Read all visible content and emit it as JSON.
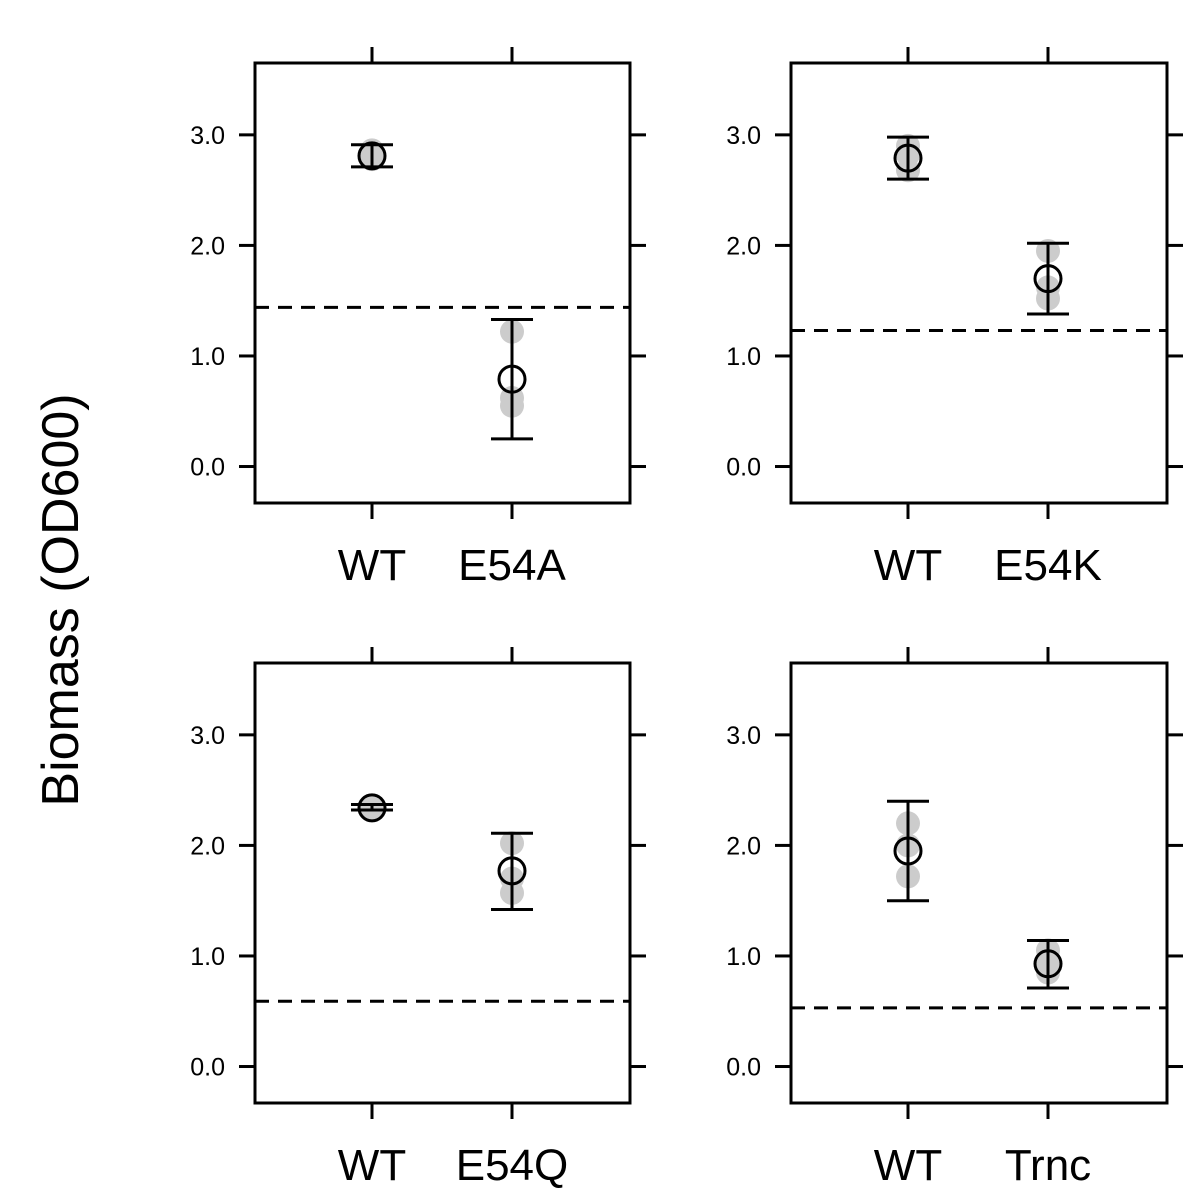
{
  "chart_data": {
    "type": "scatter",
    "ylabel": "Biomass (OD600)",
    "ylim": [
      -0.33,
      3.65
    ],
    "y_ticks": [
      0.0,
      1.0,
      2.0,
      3.0
    ],
    "y_tick_labels": [
      "0.0",
      "1.0",
      "2.0",
      "3.0"
    ],
    "colors": {
      "axis": "#000000",
      "replicate": "#cccccc",
      "mean_marker": "#000000"
    },
    "panels": [
      {
        "categories": [
          "WT",
          "E54A"
        ],
        "threshold": 1.44,
        "groups": [
          {
            "category": "WT",
            "mean": 2.81,
            "lower": 2.71,
            "upper": 2.91,
            "replicates": [
              2.78,
              2.82,
              2.86
            ]
          },
          {
            "category": "E54A",
            "mean": 0.79,
            "lower": 0.25,
            "upper": 1.33,
            "replicates": [
              0.55,
              0.62,
              1.22
            ]
          }
        ]
      },
      {
        "categories": [
          "WT",
          "E54K"
        ],
        "threshold": 1.23,
        "groups": [
          {
            "category": "WT",
            "mean": 2.79,
            "lower": 2.6,
            "upper": 2.98,
            "replicates": [
              2.68,
              2.82,
              2.9
            ]
          },
          {
            "category": "E54K",
            "mean": 1.7,
            "lower": 1.38,
            "upper": 2.02,
            "replicates": [
              1.52,
              1.62,
              1.95
            ]
          }
        ]
      },
      {
        "categories": [
          "WT",
          "E54Q"
        ],
        "threshold": 0.59,
        "groups": [
          {
            "category": "WT",
            "mean": 2.34,
            "lower": 2.32,
            "upper": 2.37,
            "replicates": [
              2.32,
              2.34,
              2.36
            ]
          },
          {
            "category": "E54Q",
            "mean": 1.77,
            "lower": 1.42,
            "upper": 2.11,
            "replicates": [
              1.57,
              1.7,
              2.02
            ]
          }
        ]
      },
      {
        "categories": [
          "WT",
          "Trnc"
        ],
        "threshold": 0.53,
        "groups": [
          {
            "category": "WT",
            "mean": 1.95,
            "lower": 1.5,
            "upper": 2.4,
            "replicates": [
              1.72,
              2.0,
              2.2
            ]
          },
          {
            "category": "Trnc",
            "mean": 0.93,
            "lower": 0.71,
            "upper": 1.14,
            "replicates": [
              0.85,
              0.93,
              1.05
            ]
          }
        ]
      }
    ]
  }
}
